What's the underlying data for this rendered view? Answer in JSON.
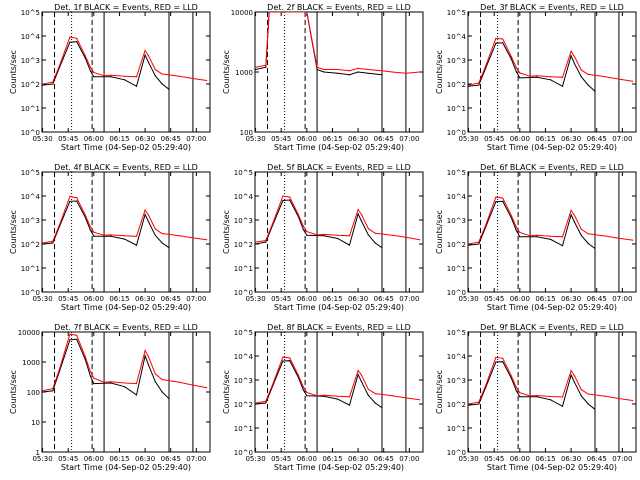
{
  "colors": {
    "background": "#ffffff",
    "axes": "#000000",
    "events": "#000000",
    "lld": "#ff0000"
  },
  "shared": {
    "xlabel": "Start Time (04-Sep-02 05:29:40)",
    "ylabel": "Counts/sec",
    "x_ticks": [
      "05:30",
      "05:45",
      "06:00",
      "06:15",
      "06:30",
      "06:45",
      "07:00"
    ],
    "x_tick_minutes": [
      30,
      45,
      60,
      75,
      90,
      105,
      120
    ],
    "xlim_minutes": [
      29.67,
      128
    ],
    "y_scale": "log",
    "legend_text": "BLACK = Events, RED = LLD",
    "vertical_markers": [
      {
        "minute": 37,
        "style": "dashed"
      },
      {
        "minute": 47,
        "style": "dotted"
      },
      {
        "minute": 59,
        "style": "dashed"
      },
      {
        "minute": 66,
        "style": "solid"
      },
      {
        "minute": 104,
        "style": "solid"
      },
      {
        "minute": 118,
        "style": "solid"
      }
    ]
  },
  "chart_data": [
    {
      "type": "line",
      "title": "Det. 1f BLACK = Events, RED = LLD",
      "ylim": [
        1,
        100000
      ],
      "y_ticks": [
        "10^0",
        "10^1",
        "10^2",
        "10^3",
        "10^4",
        "10^5"
      ],
      "y_tick_values": [
        1,
        10,
        100,
        1000,
        10000,
        100000
      ],
      "series": [
        {
          "name": "Events",
          "color": "#000000",
          "x": [
            30,
            36,
            40,
            46,
            50,
            55,
            58,
            60,
            70,
            78,
            85,
            90,
            92,
            96,
            100,
            104
          ],
          "y": [
            90,
            100,
            500,
            5500,
            5800,
            1200,
            350,
            200,
            200,
            150,
            80,
            1600,
            800,
            220,
            100,
            60
          ]
        },
        {
          "name": "LLD",
          "color": "#ff0000",
          "x": [
            30,
            36,
            40,
            46,
            50,
            55,
            58,
            60,
            66,
            70,
            78,
            85,
            90,
            92,
            96,
            100,
            104,
            110,
            118,
            126
          ],
          "y": [
            100,
            120,
            600,
            9000,
            8000,
            1500,
            500,
            300,
            220,
            230,
            210,
            200,
            2500,
            1500,
            400,
            260,
            240,
            210,
            170,
            140
          ]
        }
      ]
    },
    {
      "type": "line",
      "title": "Det. 2f BLACK = Events, RED = LLD",
      "ylim": [
        100,
        10000
      ],
      "y_ticks": [
        "100",
        "1000",
        "10000"
      ],
      "y_tick_values": [
        100,
        1000,
        10000
      ],
      "series": [
        {
          "name": "Events",
          "color": "#000000",
          "x": [
            30,
            36,
            38,
            41,
            46,
            55,
            60,
            66,
            70,
            78,
            85,
            90,
            96,
            104
          ],
          "y": [
            1100,
            1200,
            10000,
            10000,
            10000,
            10000,
            10000,
            1100,
            1000,
            950,
            900,
            1000,
            950,
            900
          ]
        },
        {
          "name": "LLD",
          "color": "#ff0000",
          "x": [
            30,
            36,
            38,
            41,
            46,
            55,
            60,
            66,
            70,
            78,
            85,
            90,
            96,
            104,
            110,
            118,
            126
          ],
          "y": [
            1200,
            1300,
            10000,
            10000,
            10000,
            10000,
            10000,
            1200,
            1100,
            1100,
            1050,
            1150,
            1100,
            1050,
            1000,
            950,
            1000
          ]
        }
      ]
    },
    {
      "type": "line",
      "title": "Det. 3f BLACK = Events, RED = LLD",
      "ylim": [
        1,
        100000
      ],
      "y_ticks": [
        "10^0",
        "10^1",
        "10^2",
        "10^3",
        "10^4",
        "10^5"
      ],
      "y_tick_values": [
        1,
        10,
        100,
        1000,
        10000,
        100000
      ],
      "series": [
        {
          "name": "Events",
          "color": "#000000",
          "x": [
            30,
            36,
            40,
            46,
            50,
            55,
            58,
            60,
            70,
            78,
            85,
            90,
            92,
            96,
            100,
            104
          ],
          "y": [
            80,
            90,
            450,
            5000,
            5200,
            1100,
            320,
            180,
            190,
            150,
            80,
            1500,
            700,
            200,
            90,
            50
          ]
        },
        {
          "name": "LLD",
          "color": "#ff0000",
          "x": [
            30,
            36,
            40,
            46,
            50,
            55,
            58,
            60,
            66,
            70,
            78,
            85,
            90,
            92,
            96,
            100,
            104,
            110,
            118,
            126
          ],
          "y": [
            90,
            110,
            550,
            8000,
            7500,
            1400,
            480,
            290,
            210,
            220,
            200,
            190,
            2300,
            1400,
            380,
            250,
            230,
            200,
            160,
            130
          ]
        }
      ]
    },
    {
      "type": "line",
      "title": "Det. 4f BLACK = Events, RED = LLD",
      "ylim": [
        1,
        100000
      ],
      "y_ticks": [
        "10^0",
        "10^1",
        "10^2",
        "10^3",
        "10^4",
        "10^5"
      ],
      "y_tick_values": [
        1,
        10,
        100,
        1000,
        10000,
        100000
      ],
      "series": [
        {
          "name": "Events",
          "color": "#000000",
          "x": [
            30,
            36,
            40,
            46,
            50,
            55,
            58,
            60,
            70,
            78,
            85,
            90,
            92,
            96,
            100,
            104
          ],
          "y": [
            100,
            110,
            550,
            6000,
            6200,
            1300,
            380,
            210,
            210,
            160,
            90,
            1700,
            850,
            230,
            110,
            70
          ]
        },
        {
          "name": "LLD",
          "color": "#ff0000",
          "x": [
            30,
            36,
            40,
            46,
            50,
            55,
            58,
            60,
            66,
            70,
            78,
            85,
            90,
            92,
            96,
            100,
            104,
            110,
            118,
            126
          ],
          "y": [
            110,
            130,
            650,
            9500,
            8500,
            1600,
            520,
            310,
            230,
            240,
            220,
            210,
            2600,
            1600,
            420,
            270,
            250,
            220,
            180,
            150
          ]
        }
      ]
    },
    {
      "type": "line",
      "title": "Det. 5f BLACK = Events, RED = LLD",
      "ylim": [
        1,
        100000
      ],
      "y_ticks": [
        "10^0",
        "10^1",
        "10^2",
        "10^3",
        "10^4",
        "10^5"
      ],
      "y_tick_values": [
        1,
        10,
        100,
        1000,
        10000,
        100000
      ],
      "series": [
        {
          "name": "Events",
          "color": "#000000",
          "x": [
            30,
            36,
            40,
            46,
            50,
            55,
            58,
            60,
            70,
            78,
            85,
            90,
            92,
            96,
            100,
            104
          ],
          "y": [
            100,
            120,
            600,
            6500,
            6800,
            1400,
            400,
            230,
            220,
            170,
            90,
            1800,
            900,
            240,
            110,
            70
          ]
        },
        {
          "name": "LLD",
          "color": "#ff0000",
          "x": [
            30,
            36,
            40,
            46,
            50,
            55,
            58,
            60,
            66,
            70,
            78,
            85,
            90,
            92,
            96,
            100,
            104,
            110,
            118,
            126
          ],
          "y": [
            120,
            140,
            700,
            10000,
            9000,
            1700,
            550,
            330,
            240,
            250,
            230,
            220,
            2700,
            1700,
            440,
            280,
            260,
            230,
            190,
            150
          ]
        }
      ]
    },
    {
      "type": "line",
      "title": "Det. 6f BLACK = Events, RED = LLD",
      "ylim": [
        1,
        100000
      ],
      "y_ticks": [
        "10^0",
        "10^1",
        "10^2",
        "10^3",
        "10^4",
        "10^5"
      ],
      "y_tick_values": [
        1,
        10,
        100,
        1000,
        10000,
        100000
      ],
      "series": [
        {
          "name": "Events",
          "color": "#000000",
          "x": [
            30,
            36,
            40,
            46,
            50,
            55,
            58,
            60,
            70,
            78,
            85,
            90,
            92,
            96,
            100,
            104
          ],
          "y": [
            90,
            100,
            500,
            5800,
            6000,
            1250,
            360,
            200,
            200,
            155,
            85,
            1650,
            820,
            225,
            105,
            65
          ]
        },
        {
          "name": "LLD",
          "color": "#ff0000",
          "x": [
            30,
            36,
            40,
            46,
            50,
            55,
            58,
            60,
            66,
            70,
            78,
            85,
            90,
            92,
            96,
            100,
            104,
            110,
            118,
            126
          ],
          "y": [
            100,
            120,
            600,
            9000,
            8200,
            1550,
            500,
            300,
            220,
            230,
            210,
            200,
            2500,
            1550,
            410,
            265,
            245,
            215,
            175,
            145
          ]
        }
      ]
    },
    {
      "type": "line",
      "title": "Det. 7f BLACK = Events, RED = LLD",
      "ylim": [
        1,
        10000
      ],
      "y_ticks": [
        "1",
        "10",
        "100",
        "1000",
        "10000"
      ],
      "y_tick_values": [
        1,
        10,
        100,
        1000,
        10000
      ],
      "series": [
        {
          "name": "Events",
          "color": "#000000",
          "x": [
            30,
            36,
            40,
            46,
            50,
            55,
            58,
            60,
            70,
            78,
            85,
            90,
            92,
            96,
            100,
            104
          ],
          "y": [
            100,
            110,
            500,
            5500,
            5700,
            1200,
            340,
            190,
            200,
            150,
            80,
            1600,
            800,
            220,
            100,
            60
          ]
        },
        {
          "name": "LLD",
          "color": "#ff0000",
          "x": [
            30,
            36,
            40,
            46,
            50,
            55,
            58,
            60,
            66,
            70,
            78,
            85,
            90,
            92,
            96,
            100,
            104,
            110,
            118,
            126
          ],
          "y": [
            110,
            130,
            600,
            8500,
            7800,
            1500,
            480,
            290,
            210,
            220,
            200,
            190,
            2400,
            1500,
            400,
            260,
            240,
            210,
            170,
            140
          ]
        }
      ]
    },
    {
      "type": "line",
      "title": "Det. 8f BLACK = Events, RED = LLD",
      "ylim": [
        1,
        100000
      ],
      "y_ticks": [
        "10^0",
        "10^1",
        "10^2",
        "10^3",
        "10^4",
        "10^5"
      ],
      "y_tick_values": [
        1,
        10,
        100,
        1000,
        10000,
        100000
      ],
      "series": [
        {
          "name": "Events",
          "color": "#000000",
          "x": [
            30,
            36,
            40,
            46,
            50,
            55,
            58,
            60,
            70,
            78,
            85,
            90,
            92,
            96,
            100,
            104
          ],
          "y": [
            100,
            110,
            550,
            6200,
            6400,
            1300,
            380,
            220,
            210,
            160,
            90,
            1700,
            850,
            230,
            110,
            70
          ]
        },
        {
          "name": "LLD",
          "color": "#ff0000",
          "x": [
            30,
            36,
            40,
            46,
            50,
            55,
            58,
            60,
            66,
            70,
            78,
            85,
            90,
            92,
            96,
            100,
            104,
            110,
            118,
            126
          ],
          "y": [
            110,
            130,
            650,
            9000,
            8300,
            1600,
            510,
            300,
            220,
            230,
            210,
            200,
            2500,
            1600,
            410,
            270,
            250,
            220,
            180,
            150
          ]
        }
      ]
    },
    {
      "type": "line",
      "title": "Det. 9f BLACK = Events, RED = LLD",
      "ylim": [
        1,
        100000
      ],
      "y_ticks": [
        "10^0",
        "10^1",
        "10^2",
        "10^3",
        "10^4",
        "10^5"
      ],
      "y_tick_values": [
        1,
        10,
        100,
        1000,
        10000,
        100000
      ],
      "series": [
        {
          "name": "Events",
          "color": "#000000",
          "x": [
            30,
            36,
            40,
            46,
            50,
            55,
            58,
            60,
            70,
            78,
            85,
            90,
            92,
            96,
            100,
            104
          ],
          "y": [
            90,
            100,
            480,
            5600,
            5800,
            1200,
            350,
            200,
            200,
            150,
            80,
            1600,
            800,
            220,
            100,
            60
          ]
        },
        {
          "name": "LLD",
          "color": "#ff0000",
          "x": [
            30,
            36,
            40,
            46,
            50,
            55,
            58,
            60,
            66,
            70,
            78,
            85,
            90,
            92,
            96,
            100,
            104,
            110,
            118,
            126
          ],
          "y": [
            100,
            120,
            580,
            8800,
            8000,
            1500,
            490,
            295,
            215,
            225,
            205,
            195,
            2450,
            1500,
            400,
            260,
            240,
            210,
            170,
            140
          ]
        }
      ]
    }
  ]
}
